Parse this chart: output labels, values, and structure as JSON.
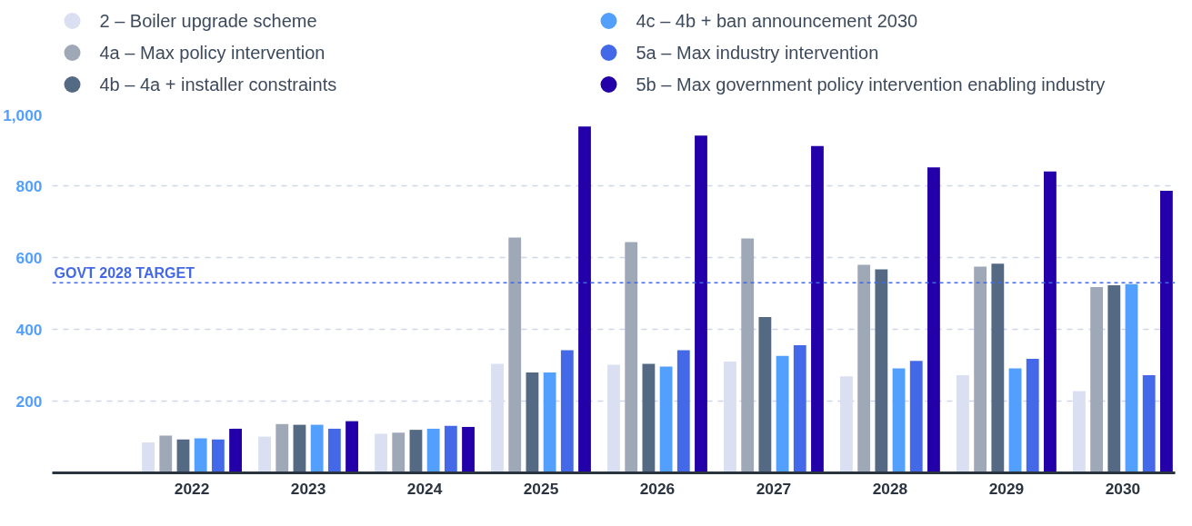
{
  "chart_data": {
    "type": "bar",
    "categories": [
      "2022",
      "2023",
      "2024",
      "2025",
      "2026",
      "2027",
      "2028",
      "2029",
      "2030"
    ],
    "series": [
      {
        "name": "2 – Boiler upgrade scheme",
        "color": "#dae0f1",
        "values": [
          85,
          101,
          109,
          304,
          301,
          310,
          269,
          272,
          228
        ]
      },
      {
        "name": "4a – Max policy intervention",
        "color": "#9ea8b7",
        "values": [
          104,
          136,
          112,
          656,
          643,
          653,
          580,
          575,
          518
        ]
      },
      {
        "name": "4b – 4a + installer constraints",
        "color": "#546a84",
        "values": [
          93,
          134,
          120,
          280,
          304,
          434,
          567,
          583,
          523
        ]
      },
      {
        "name": "4c – 4b + ban announcement 2030",
        "color": "#529ffd",
        "values": [
          96,
          134,
          123,
          280,
          296,
          326,
          291,
          291,
          526
        ]
      },
      {
        "name": "5a – Max industry intervention",
        "color": "#4368e8",
        "values": [
          93,
          123,
          131,
          342,
          342,
          356,
          312,
          318,
          272
        ]
      },
      {
        "name": "5b – Max government policy intervention enabling industry",
        "color": "#2300a8",
        "values": [
          123,
          144,
          128,
          965,
          940,
          911,
          851,
          840,
          786
        ]
      }
    ],
    "ylim": [
      0,
      1000
    ],
    "yticks": [
      {
        "value": 0,
        "label": null
      },
      200,
      400,
      600,
      800,
      {
        "value": 1000,
        "label": "1,000"
      }
    ],
    "grid": "y",
    "legend": "top",
    "ref_lines": [
      {
        "axis": "y",
        "value": 530,
        "label": "GOVT 2028 TARGET",
        "color": "#4368e8",
        "line_style": "dashed"
      }
    ]
  }
}
